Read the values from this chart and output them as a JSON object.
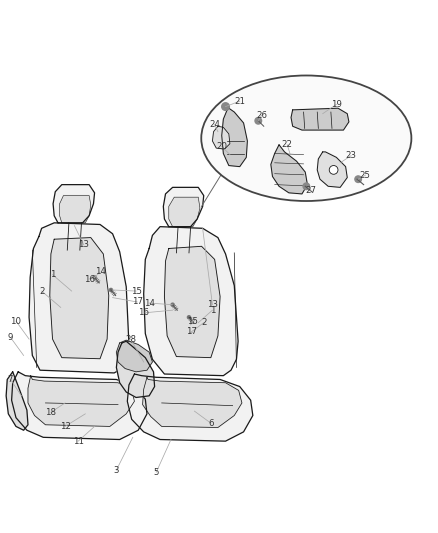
{
  "bg_color": "#ffffff",
  "line_color": "#1a1a1a",
  "fill_light": "#f2f2f2",
  "fill_mid": "#e0e0e0",
  "fill_dark": "#cccccc",
  "leader_color": "#888888",
  "label_color": "#333333",
  "line_width": 0.9
}
